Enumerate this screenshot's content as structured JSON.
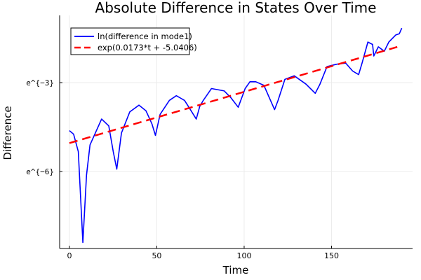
{
  "chart_data": {
    "type": "line",
    "title": "Absolute Difference in States Over Time",
    "xlabel": "Time",
    "ylabel": "Difference",
    "xlim": [
      -5.6,
      196.4
    ],
    "ylim": [
      -8.6,
      -0.73
    ],
    "x_ticks": [
      {
        "value": 0,
        "label": "0"
      },
      {
        "value": 50,
        "label": "50"
      },
      {
        "value": 100,
        "label": "100"
      },
      {
        "value": 150,
        "label": "150"
      }
    ],
    "y_ticks": [
      {
        "value": -3,
        "label": "e^{−3}"
      },
      {
        "value": -6,
        "label": "e^{−6}"
      }
    ],
    "grid": true,
    "legend_position": "top-left",
    "series": [
      {
        "name": "ln(difference in mode1)",
        "color": "#0000ff",
        "style": "solid",
        "x": [
          0,
          2.4,
          5.1,
          7.7,
          9.8,
          11.8,
          18.4,
          22.5,
          25.1,
          27.1,
          29.8,
          34.5,
          39.8,
          43.8,
          47.2,
          49.2,
          51.9,
          57.2,
          61.2,
          65.9,
          69.2,
          72.6,
          74.6,
          76.6,
          81.3,
          88.6,
          92.6,
          96.6,
          100.6,
          103.3,
          106.7,
          111.3,
          117.4,
          119.4,
          123.3,
          128.7,
          135.4,
          140.7,
          143.4,
          147.4,
          152.8,
          158.1,
          162.1,
          165.5,
          167.5,
          170.8,
          173.5,
          174.2,
          176.8,
          180.2,
          182.8,
          186.8,
          188.8,
          190.2
        ],
        "y": [
          -4.62,
          -4.74,
          -5.33,
          -8.4,
          -6.12,
          -5.1,
          -4.23,
          -4.46,
          -5.33,
          -5.92,
          -4.7,
          -3.99,
          -3.76,
          -3.95,
          -4.39,
          -4.78,
          -4.07,
          -3.6,
          -3.44,
          -3.6,
          -3.91,
          -4.23,
          -3.8,
          -3.6,
          -3.2,
          -3.28,
          -3.52,
          -3.83,
          -3.2,
          -2.97,
          -2.97,
          -3.09,
          -3.91,
          -3.6,
          -2.89,
          -2.77,
          -3.05,
          -3.36,
          -3.05,
          -2.46,
          -2.38,
          -2.34,
          -2.61,
          -2.73,
          -2.34,
          -1.63,
          -1.71,
          -2.1,
          -1.79,
          -1.94,
          -1.63,
          -1.39,
          -1.35,
          -1.16
        ]
      },
      {
        "name": "exp(0.0173*t + -5.0406)",
        "color": "#ff0000",
        "style": "dashed",
        "slope": 0.0173,
        "intercept": -5.0406,
        "x": [
          0,
          190
        ]
      }
    ]
  }
}
